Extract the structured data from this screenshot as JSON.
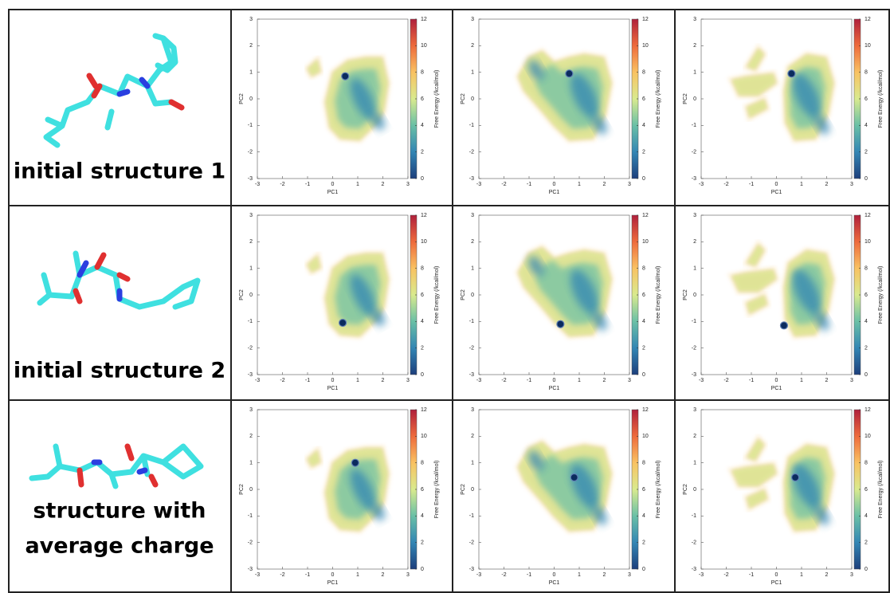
{
  "rows": [
    {
      "lines": [
        "initial structure 1"
      ]
    },
    {
      "lines": [
        "initial structure 2"
      ]
    },
    {
      "lines": [
        "structure with",
        "average charge"
      ]
    }
  ],
  "chart_data": [
    {
      "type": "scatter",
      "x": [
        0.5
      ],
      "values": [
        0.85
      ],
      "color": "#0b2b5e",
      "xlabel": "PC1",
      "ylabel": "PC2",
      "xlim": [
        -3,
        3
      ],
      "ylim": [
        -3,
        3
      ],
      "xticks": [
        -3,
        -2,
        -1,
        0,
        1,
        2,
        3
      ],
      "yticks": [
        -3,
        -2,
        -1,
        0,
        1,
        2,
        3
      ],
      "colorbar": {
        "label": "Free Energy (/kcal/mol)",
        "lim": [
          0,
          12
        ],
        "ticks": [
          0,
          2,
          4,
          6,
          8,
          10,
          12
        ],
        "colors": [
          "#1d3f7c",
          "#3386b4",
          "#6ac0a6",
          "#d9ea8e",
          "#f9c262",
          "#ee6b3c",
          "#b0203c"
        ]
      }
    },
    {
      "type": "scatter",
      "x": [
        0.6
      ],
      "values": [
        0.95
      ],
      "color": "#0b2b5e",
      "xlabel": "PC1",
      "ylabel": "PC2",
      "xlim": [
        -3,
        3
      ],
      "ylim": [
        -3,
        3
      ],
      "xticks": [
        -3,
        -2,
        -1,
        0,
        1,
        2,
        3
      ],
      "yticks": [
        -3,
        -2,
        -1,
        0,
        1,
        2,
        3
      ],
      "colorbar": {
        "label": "Free Energy (/kcal/mol)",
        "lim": [
          0,
          12
        ],
        "ticks": [
          0,
          2,
          4,
          6,
          8,
          10,
          12
        ],
        "colors": [
          "#1d3f7c",
          "#3386b4",
          "#6ac0a6",
          "#d9ea8e",
          "#f9c262",
          "#ee6b3c",
          "#b0203c"
        ]
      }
    },
    {
      "type": "scatter",
      "x": [
        0.6
      ],
      "values": [
        0.95
      ],
      "color": "#0b2b5e",
      "xlabel": "PC1",
      "ylabel": "PC2",
      "xlim": [
        -3,
        3
      ],
      "ylim": [
        -3,
        3
      ],
      "xticks": [
        -3,
        -2,
        -1,
        0,
        1,
        2,
        3
      ],
      "yticks": [
        -3,
        -2,
        -1,
        0,
        1,
        2,
        3
      ],
      "colorbar": {
        "label": "Free Energy (/kcal/mol)",
        "lim": [
          0,
          12
        ],
        "ticks": [
          0,
          2,
          4,
          6,
          8,
          10,
          12
        ],
        "colors": [
          "#1d3f7c",
          "#3386b4",
          "#6ac0a6",
          "#d9ea8e",
          "#f9c262",
          "#ee6b3c",
          "#b0203c"
        ]
      }
    },
    {
      "type": "scatter",
      "x": [
        0.4
      ],
      "values": [
        -1.05
      ],
      "color": "#0b2b5e",
      "xlabel": "PC1",
      "ylabel": "PC2",
      "xlim": [
        -3,
        3
      ],
      "ylim": [
        -3,
        3
      ],
      "xticks": [
        -3,
        -2,
        -1,
        0,
        1,
        2,
        3
      ],
      "yticks": [
        -3,
        -2,
        -1,
        0,
        1,
        2,
        3
      ],
      "colorbar": {
        "label": "Free Energy (/kcal/mol)",
        "lim": [
          0,
          12
        ],
        "ticks": [
          0,
          2,
          4,
          6,
          8,
          10,
          12
        ],
        "colors": [
          "#1d3f7c",
          "#3386b4",
          "#6ac0a6",
          "#d9ea8e",
          "#f9c262",
          "#ee6b3c",
          "#b0203c"
        ]
      }
    },
    {
      "type": "scatter",
      "x": [
        0.25
      ],
      "values": [
        -1.1
      ],
      "color": "#0b2b5e",
      "xlabel": "PC1",
      "ylabel": "PC2",
      "xlim": [
        -3,
        3
      ],
      "ylim": [
        -3,
        3
      ],
      "xticks": [
        -3,
        -2,
        -1,
        0,
        1,
        2,
        3
      ],
      "yticks": [
        -3,
        -2,
        -1,
        0,
        1,
        2,
        3
      ],
      "colorbar": {
        "label": "Free Energy (/kcal/mol)",
        "lim": [
          0,
          12
        ],
        "ticks": [
          0,
          2,
          4,
          6,
          8,
          10,
          12
        ],
        "colors": [
          "#1d3f7c",
          "#3386b4",
          "#6ac0a6",
          "#d9ea8e",
          "#f9c262",
          "#ee6b3c",
          "#b0203c"
        ]
      }
    },
    {
      "type": "scatter",
      "x": [
        0.3
      ],
      "values": [
        -1.15
      ],
      "color": "#0b2b5e",
      "xlabel": "PC1",
      "ylabel": "PC2",
      "xlim": [
        -3,
        3
      ],
      "ylim": [
        -3,
        3
      ],
      "xticks": [
        -3,
        -2,
        -1,
        0,
        1,
        2,
        3
      ],
      "yticks": [
        -3,
        -2,
        -1,
        0,
        1,
        2,
        3
      ],
      "colorbar": {
        "label": "Free Energy (/kcal/mol)",
        "lim": [
          0,
          12
        ],
        "ticks": [
          0,
          2,
          4,
          6,
          8,
          10,
          12
        ],
        "colors": [
          "#1d3f7c",
          "#3386b4",
          "#6ac0a6",
          "#d9ea8e",
          "#f9c262",
          "#ee6b3c",
          "#b0203c"
        ]
      }
    },
    {
      "type": "scatter",
      "x": [
        0.9
      ],
      "values": [
        1.0
      ],
      "color": "#0b2b5e",
      "xlabel": "PC1",
      "ylabel": "PC2",
      "xlim": [
        -3,
        3
      ],
      "ylim": [
        -3,
        3
      ],
      "xticks": [
        -3,
        -2,
        -1,
        0,
        1,
        2,
        3
      ],
      "yticks": [
        -3,
        -2,
        -1,
        0,
        1,
        2,
        3
      ],
      "colorbar": {
        "label": "Free Energy (/kcal/mol)",
        "lim": [
          0,
          12
        ],
        "ticks": [
          0,
          2,
          4,
          6,
          8,
          10,
          12
        ],
        "colors": [
          "#1d3f7c",
          "#3386b4",
          "#6ac0a6",
          "#d9ea8e",
          "#f9c262",
          "#ee6b3c",
          "#b0203c"
        ]
      }
    },
    {
      "type": "scatter",
      "x": [
        0.8
      ],
      "values": [
        0.45
      ],
      "color": "#0b2b5e",
      "xlabel": "PC1",
      "ylabel": "PC2",
      "xlim": [
        -3,
        3
      ],
      "ylim": [
        -3,
        3
      ],
      "xticks": [
        -3,
        -2,
        -1,
        0,
        1,
        2,
        3
      ],
      "yticks": [
        -3,
        -2,
        -1,
        0,
        1,
        2,
        3
      ],
      "colorbar": {
        "label": "Free Energy (/kcal/mol)",
        "lim": [
          0,
          12
        ],
        "ticks": [
          0,
          2,
          4,
          6,
          8,
          10,
          12
        ],
        "colors": [
          "#1d3f7c",
          "#3386b4",
          "#6ac0a6",
          "#d9ea8e",
          "#f9c262",
          "#ee6b3c",
          "#b0203c"
        ]
      }
    },
    {
      "type": "scatter",
      "x": [
        0.75
      ],
      "values": [
        0.45
      ],
      "color": "#0b2b5e",
      "xlabel": "PC1",
      "ylabel": "PC2",
      "xlim": [
        -3,
        3
      ],
      "ylim": [
        -3,
        3
      ],
      "xticks": [
        -3,
        -2,
        -1,
        0,
        1,
        2,
        3
      ],
      "yticks": [
        -3,
        -2,
        -1,
        0,
        1,
        2,
        3
      ],
      "colorbar": {
        "label": "Free Energy (/kcal/mol)",
        "lim": [
          0,
          12
        ],
        "ticks": [
          0,
          2,
          4,
          6,
          8,
          10,
          12
        ],
        "colors": [
          "#1d3f7c",
          "#3386b4",
          "#6ac0a6",
          "#d9ea8e",
          "#f9c262",
          "#ee6b3c",
          "#b0203c"
        ]
      }
    }
  ]
}
